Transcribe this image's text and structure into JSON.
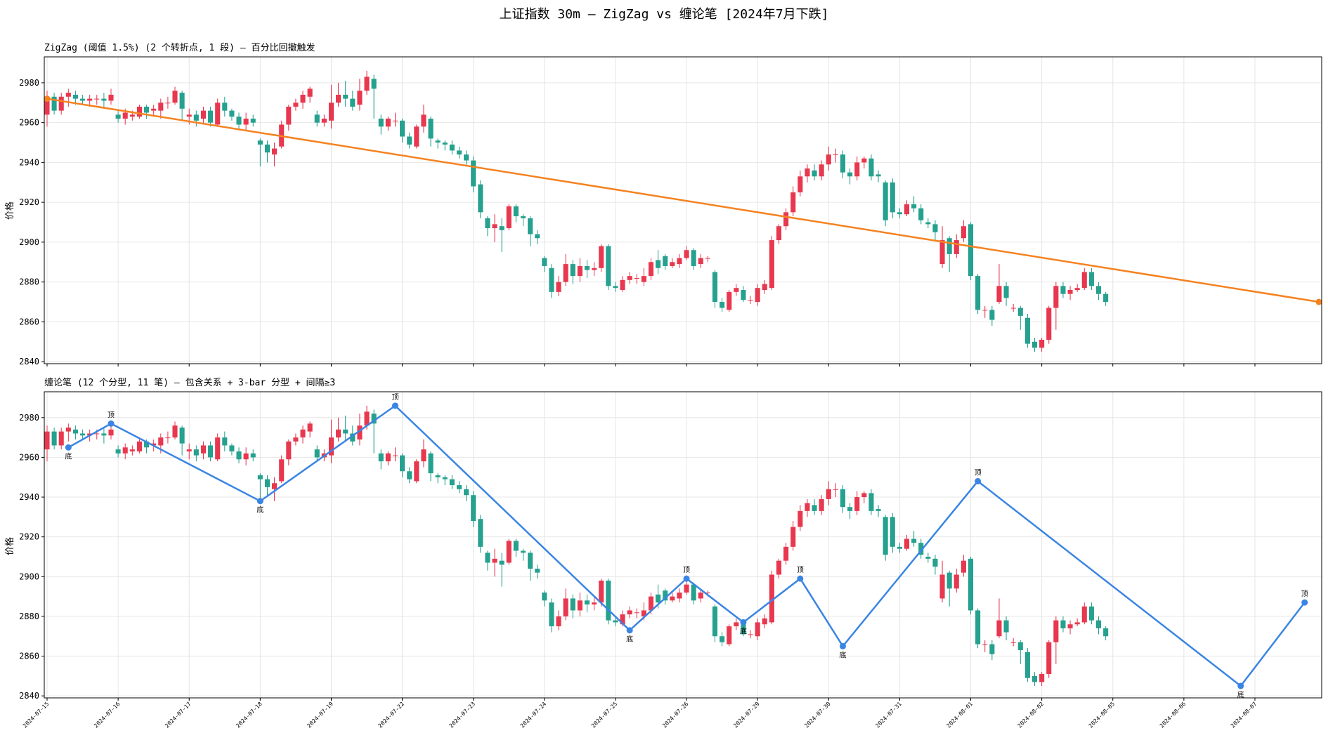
{
  "title": "上证指数 30m — ZigZag vs 缠论笔  [2024年7月下跌]",
  "colors": {
    "up": "#e8384f",
    "down": "#26a18f",
    "zigzag": "#f58220",
    "bi": "#3a85e3",
    "top_label": "#e8384f",
    "bottom_label": "#26a18f"
  },
  "chart_data": [
    {
      "type": "candlestick",
      "subtitle": "ZigZag (阈值 1.5%)  (2 个转折点, 1 段)  — 百分比回撤触发",
      "ylabel": "价格",
      "ylim": [
        2839,
        2993
      ],
      "yticks": [
        2840,
        2860,
        2880,
        2900,
        2920,
        2940,
        2960,
        2980
      ],
      "grid": true,
      "overlay": {
        "name": "ZigZag",
        "points": [
          [
            0,
            2972
          ],
          [
            179,
            2870
          ]
        ]
      }
    },
    {
      "type": "candlestick",
      "subtitle": "缠论笔  (12 个分型, 11 笔)  — 包含关系 + 3-bar 分型 + 间隔≥3",
      "ylabel": "价格",
      "ylim": [
        2839,
        2993
      ],
      "yticks": [
        2840,
        2860,
        2880,
        2900,
        2920,
        2940,
        2960,
        2980
      ],
      "grid": true,
      "fractal_labels": {
        "top": "顶",
        "bottom": "底"
      },
      "fractals": [
        {
          "i": 3,
          "price": 2965,
          "kind": "bottom"
        },
        {
          "i": 9,
          "price": 2977,
          "kind": "top"
        },
        {
          "i": 30,
          "price": 2938,
          "kind": "bottom"
        },
        {
          "i": 49,
          "price": 2986,
          "kind": "top"
        },
        {
          "i": 82,
          "price": 2873,
          "kind": "bottom"
        },
        {
          "i": 90,
          "price": 2899,
          "kind": "top"
        },
        {
          "i": 98,
          "price": 2877,
          "kind": "bottom"
        },
        {
          "i": 106,
          "price": 2899,
          "kind": "top"
        },
        {
          "i": 112,
          "price": 2865,
          "kind": "bottom"
        },
        {
          "i": 131,
          "price": 2948,
          "kind": "top"
        },
        {
          "i": 168,
          "price": 2845,
          "kind": "bottom"
        },
        {
          "i": 177,
          "price": 2887,
          "kind": "top"
        }
      ]
    }
  ],
  "shared": {
    "x_dates": [
      {
        "i": 0,
        "label": "2024-07-15"
      },
      {
        "i": 10,
        "label": "2024-07-16"
      },
      {
        "i": 20,
        "label": "2024-07-17"
      },
      {
        "i": 30,
        "label": "2024-07-18"
      },
      {
        "i": 40,
        "label": "2024-07-19"
      },
      {
        "i": 50,
        "label": "2024-07-22"
      },
      {
        "i": 60,
        "label": "2024-07-23"
      },
      {
        "i": 70,
        "label": "2024-07-24"
      },
      {
        "i": 80,
        "label": "2024-07-25"
      },
      {
        "i": 90,
        "label": "2024-07-26"
      },
      {
        "i": 100,
        "label": "2024-07-29"
      },
      {
        "i": 110,
        "label": "2024-07-30"
      },
      {
        "i": 120,
        "label": "2024-07-31"
      },
      {
        "i": 130,
        "label": "2024-08-01"
      },
      {
        "i": 140,
        "label": "2024-08-02"
      },
      {
        "i": 150,
        "label": "2024-08-05"
      },
      {
        "i": 160,
        "label": "2024-08-06"
      },
      {
        "i": 170,
        "label": "2024-08-07"
      }
    ],
    "candles": [
      [
        2964,
        2973,
        2958,
        2976
      ],
      [
        2973,
        2966,
        2964,
        2975
      ],
      [
        2966,
        2973,
        2964,
        2975
      ],
      [
        2973,
        2975,
        2968,
        2977
      ],
      [
        2974,
        2972,
        2969,
        2976
      ],
      [
        2972,
        2971,
        2969,
        2974
      ],
      [
        2971,
        2972,
        2968,
        2974
      ],
      [
        2972,
        2972,
        2969,
        2974
      ],
      [
        2972,
        2971,
        2967,
        2975
      ],
      [
        2971,
        2974,
        2969,
        2977
      ],
      [
        2964,
        2962,
        2960,
        2966
      ],
      [
        2962,
        2965,
        2959,
        2967
      ],
      [
        2963,
        2964,
        2961,
        2966
      ],
      [
        2963,
        2968,
        2962,
        2969
      ],
      [
        2968,
        2965,
        2962,
        2969
      ],
      [
        2966,
        2967,
        2963,
        2969
      ],
      [
        2966,
        2970,
        2962,
        2972
      ],
      [
        2970,
        2970,
        2967,
        2973
      ],
      [
        2970,
        2976,
        2969,
        2978
      ],
      [
        2975,
        2967,
        2961,
        2976
      ],
      [
        2963,
        2964,
        2959,
        2967
      ],
      [
        2964,
        2961,
        2958,
        2966
      ],
      [
        2962,
        2966,
        2959,
        2968
      ],
      [
        2966,
        2960,
        2958,
        2968
      ],
      [
        2959,
        2970,
        2958,
        2972
      ],
      [
        2970,
        2966,
        2963,
        2973
      ],
      [
        2966,
        2963,
        2961,
        2967
      ],
      [
        2963,
        2959,
        2957,
        2965
      ],
      [
        2959,
        2962,
        2956,
        2965
      ],
      [
        2962,
        2960,
        2958,
        2964
      ],
      [
        2951,
        2949,
        2938,
        2952
      ],
      [
        2949,
        2945,
        2940,
        2951
      ],
      [
        2944,
        2947,
        2938,
        2950
      ],
      [
        2948,
        2959,
        2947,
        2961
      ],
      [
        2959,
        2968,
        2956,
        2969
      ],
      [
        2968,
        2970,
        2966,
        2972
      ],
      [
        2970,
        2974,
        2967,
        2976
      ],
      [
        2973,
        2977,
        2970,
        2978
      ],
      [
        2964,
        2960,
        2958,
        2966
      ],
      [
        2960,
        2962,
        2958,
        2964
      ],
      [
        2961,
        2970,
        2957,
        2979
      ],
      [
        2970,
        2974,
        2968,
        2980
      ],
      [
        2974,
        2972,
        2968,
        2981
      ],
      [
        2972,
        2968,
        2966,
        2976
      ],
      [
        2969,
        2976,
        2966,
        2982
      ],
      [
        2976,
        2983,
        2974,
        2986
      ],
      [
        2982,
        2977,
        2962,
        2984
      ],
      [
        2962,
        2958,
        2954,
        2964
      ],
      [
        2958,
        2962,
        2956,
        2963
      ],
      [
        2961,
        2961,
        2958,
        2965
      ],
      [
        2961,
        2953,
        2950,
        2962
      ],
      [
        2953,
        2949,
        2947,
        2955
      ],
      [
        2948,
        2958,
        2947,
        2959
      ],
      [
        2958,
        2964,
        2955,
        2969
      ],
      [
        2962,
        2952,
        2948,
        2963
      ],
      [
        2951,
        2950,
        2947,
        2952
      ],
      [
        2950,
        2949,
        2946,
        2951
      ],
      [
        2949,
        2946,
        2944,
        2951
      ],
      [
        2946,
        2944,
        2942,
        2948
      ],
      [
        2944,
        2941,
        2938,
        2946
      ],
      [
        2941,
        2928,
        2925,
        2943
      ],
      [
        2929,
        2915,
        2912,
        2931
      ],
      [
        2912,
        2907,
        2903,
        2913
      ],
      [
        2907,
        2909,
        2900,
        2914
      ],
      [
        2908,
        2906,
        2895,
        2912
      ],
      [
        2907,
        2918,
        2906,
        2919
      ],
      [
        2918,
        2913,
        2910,
        2919
      ],
      [
        2913,
        2912,
        2908,
        2914
      ],
      [
        2912,
        2904,
        2898,
        2913
      ],
      [
        2904,
        2902,
        2899,
        2906
      ],
      [
        2892,
        2888,
        2885,
        2893
      ],
      [
        2887,
        2875,
        2872,
        2889
      ],
      [
        2875,
        2880,
        2873,
        2883
      ],
      [
        2880,
        2889,
        2878,
        2894
      ],
      [
        2889,
        2883,
        2879,
        2891
      ],
      [
        2883,
        2888,
        2880,
        2892
      ],
      [
        2888,
        2886,
        2882,
        2891
      ],
      [
        2886,
        2887,
        2883,
        2890
      ],
      [
        2887,
        2898,
        2885,
        2899
      ],
      [
        2898,
        2878,
        2876,
        2899
      ],
      [
        2878,
        2877,
        2875,
        2880
      ],
      [
        2876,
        2881,
        2875,
        2883
      ],
      [
        2881,
        2883,
        2879,
        2885
      ],
      [
        2882,
        2882,
        2879,
        2884
      ],
      [
        2880,
        2883,
        2878,
        2887
      ],
      [
        2883,
        2890,
        2881,
        2892
      ],
      [
        2891,
        2887,
        2884,
        2896
      ],
      [
        2893,
        2888,
        2886,
        2894
      ],
      [
        2888,
        2890,
        2887,
        2892
      ],
      [
        2889,
        2892,
        2887,
        2894
      ],
      [
        2892,
        2896,
        2891,
        2898
      ],
      [
        2896,
        2888,
        2886,
        2897
      ],
      [
        2889,
        2892,
        2887,
        2894
      ],
      [
        2892,
        2892,
        2890,
        2893
      ],
      [
        2885,
        2870,
        2867,
        2886
      ],
      [
        2870,
        2867,
        2865,
        2872
      ],
      [
        2866,
        2875,
        2865,
        2876
      ],
      [
        2875,
        2877,
        2873,
        2879
      ],
      [
        2876,
        2871,
        2870,
        2878
      ],
      [
        2871,
        2871,
        2869,
        2873
      ],
      [
        2870,
        2877,
        2868,
        2879
      ],
      [
        2876,
        2879,
        2874,
        2881
      ],
      [
        2877,
        2901,
        2876,
        2903
      ],
      [
        2901,
        2908,
        2899,
        2909
      ],
      [
        2908,
        2915,
        2906,
        2917
      ],
      [
        2915,
        2925,
        2913,
        2928
      ],
      [
        2925,
        2933,
        2923,
        2936
      ],
      [
        2933,
        2937,
        2930,
        2939
      ],
      [
        2936,
        2933,
        2931,
        2939
      ],
      [
        2933,
        2939,
        2931,
        2941
      ],
      [
        2939,
        2944,
        2936,
        2948
      ],
      [
        2944,
        2944,
        2940,
        2947
      ],
      [
        2944,
        2935,
        2932,
        2946
      ],
      [
        2935,
        2933,
        2929,
        2937
      ],
      [
        2933,
        2940,
        2931,
        2943
      ],
      [
        2940,
        2942,
        2937,
        2943
      ],
      [
        2942,
        2933,
        2931,
        2944
      ],
      [
        2934,
        2933,
        2930,
        2936
      ],
      [
        2930,
        2911,
        2908,
        2931
      ],
      [
        2930,
        2915,
        2912,
        2932
      ],
      [
        2915,
        2914,
        2912,
        2917
      ],
      [
        2914,
        2919,
        2913,
        2921
      ],
      [
        2919,
        2917,
        2915,
        2923
      ],
      [
        2917,
        2911,
        2909,
        2919
      ],
      [
        2910,
        2909,
        2907,
        2912
      ],
      [
        2909,
        2905,
        2901,
        2911
      ],
      [
        2889,
        2901,
        2887,
        2908
      ],
      [
        2902,
        2894,
        2885,
        2903
      ],
      [
        2894,
        2901,
        2892,
        2904
      ],
      [
        2902,
        2908,
        2900,
        2911
      ],
      [
        2909,
        2883,
        2881,
        2910
      ],
      [
        2883,
        2866,
        2864,
        2884
      ],
      [
        2866,
        2866,
        2862,
        2868
      ],
      [
        2866,
        2861,
        2858,
        2868
      ],
      [
        2870,
        2878,
        2869,
        2889
      ],
      [
        2878,
        2872,
        2868,
        2880
      ],
      [
        2867,
        2867,
        2865,
        2869
      ],
      [
        2867,
        2863,
        2856,
        2868
      ],
      [
        2862,
        2849,
        2847,
        2864
      ],
      [
        2850,
        2847,
        2845,
        2852
      ],
      [
        2847,
        2851,
        2845,
        2852
      ],
      [
        2851,
        2867,
        2849,
        2868
      ],
      [
        2867,
        2878,
        2856,
        2880
      ],
      [
        2878,
        2874,
        2872,
        2880
      ],
      [
        2874,
        2876,
        2871,
        2878
      ],
      [
        2876,
        2877,
        2875,
        2879
      ],
      [
        2877,
        2885,
        2876,
        2887
      ],
      [
        2885,
        2878,
        2876,
        2887
      ],
      [
        2878,
        2874,
        2871,
        2880
      ],
      [
        2874,
        2870,
        2868,
        2875
      ]
    ]
  }
}
